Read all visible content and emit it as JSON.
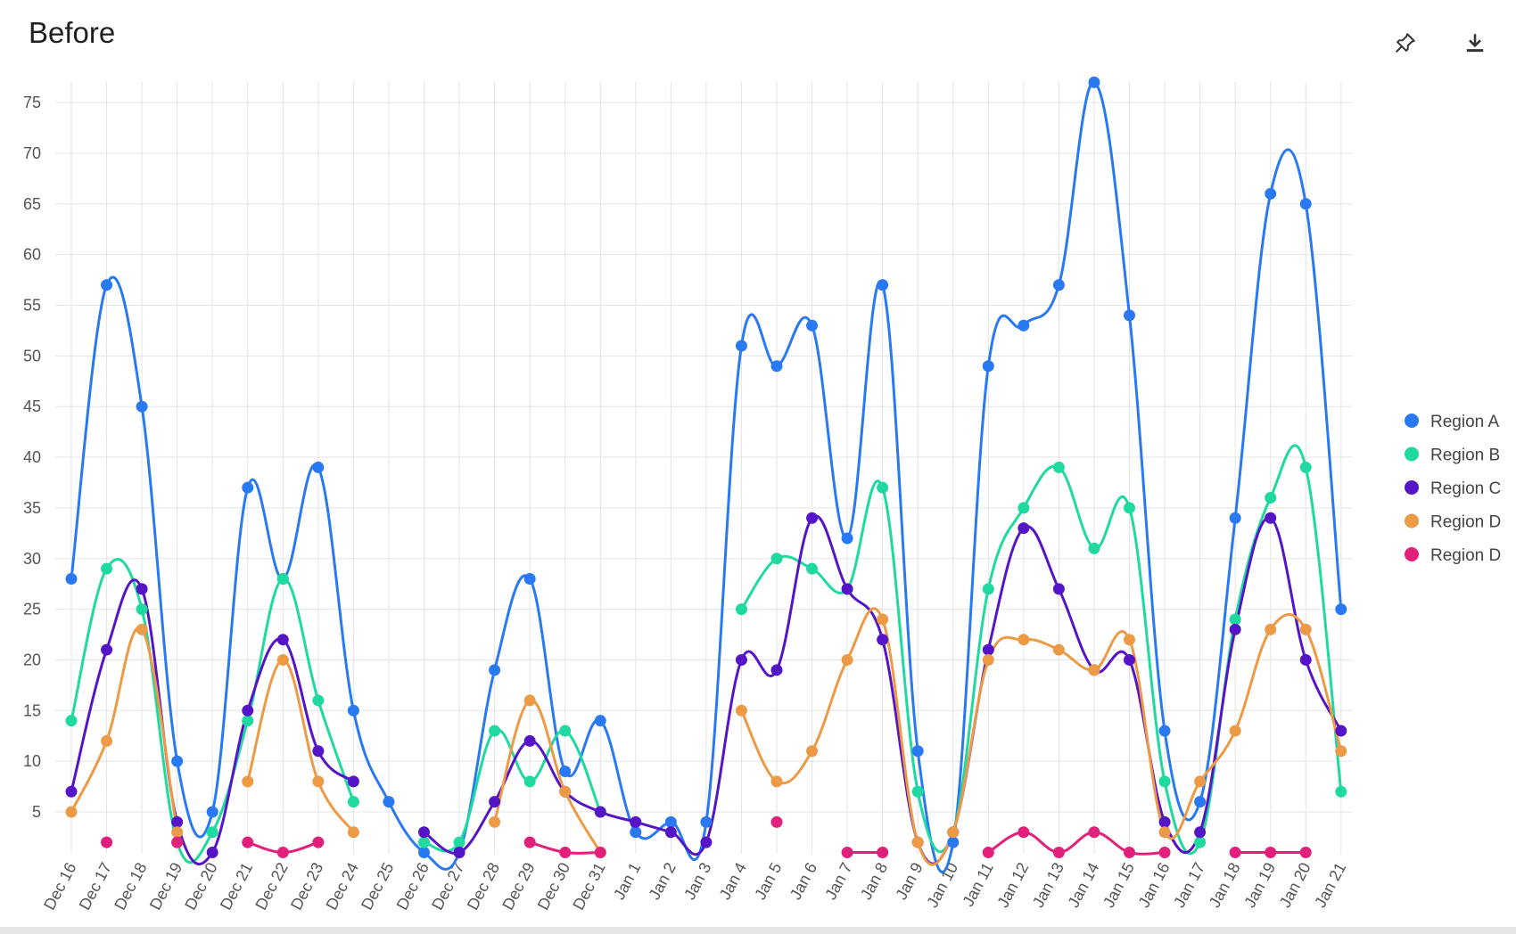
{
  "header": {
    "title": "Before",
    "pin_icon": "pin-icon",
    "download_icon": "download-icon"
  },
  "chart_data": {
    "type": "line",
    "title": "Before",
    "categories": [
      "Dec 16",
      "Dec 17",
      "Dec 18",
      "Dec 19",
      "Dec 20",
      "Dec 21",
      "Dec 22",
      "Dec 23",
      "Dec 24",
      "Dec 25",
      "Dec 26",
      "Dec 27",
      "Dec 28",
      "Dec 29",
      "Dec 30",
      "Dec 31",
      "Jan 1",
      "Jan 2",
      "Jan 3",
      "Jan 4",
      "Jan 5",
      "Jan 6",
      "Jan 7",
      "Jan 8",
      "Jan 9",
      "Jan 10",
      "Jan 11",
      "Jan 12",
      "Jan 13",
      "Jan 14",
      "Jan 15",
      "Jan 16",
      "Jan 17",
      "Jan 18",
      "Jan 19",
      "Jan 20",
      "Jan 21"
    ],
    "y_ticks": [
      5,
      10,
      15,
      20,
      25,
      30,
      35,
      40,
      45,
      50,
      55,
      60,
      65,
      70,
      75
    ],
    "ylim": [
      0,
      78
    ],
    "grid": true,
    "legend_position": "right",
    "series": [
      {
        "name": "Region A",
        "color": "#2979f2",
        "values": [
          28,
          57,
          45,
          10,
          5,
          37,
          28,
          39,
          15,
          6,
          1,
          1,
          19,
          28,
          9,
          14,
          3,
          4,
          4,
          51,
          49,
          53,
          32,
          57,
          11,
          2,
          49,
          53,
          57,
          77,
          54,
          13,
          6,
          34,
          66,
          65,
          25
        ]
      },
      {
        "name": "Region B",
        "color": "#1fd9a0",
        "values": [
          14,
          29,
          25,
          2,
          3,
          14,
          28,
          16,
          6,
          null,
          2,
          2,
          13,
          8,
          13,
          5,
          null,
          null,
          null,
          25,
          30,
          29,
          27,
          37,
          7,
          3,
          27,
          35,
          39,
          31,
          35,
          8,
          2,
          24,
          36,
          39,
          7
        ]
      },
      {
        "name": "Region C",
        "color": "#5515c7",
        "values": [
          7,
          21,
          27,
          4,
          1,
          15,
          22,
          11,
          8,
          null,
          3,
          1,
          6,
          12,
          7,
          5,
          4,
          3,
          2,
          20,
          19,
          34,
          27,
          22,
          2,
          3,
          21,
          33,
          27,
          19,
          20,
          4,
          3,
          23,
          34,
          20,
          13
        ]
      },
      {
        "name": "Region D",
        "color": "#ed9a46",
        "values": [
          5,
          12,
          23,
          3,
          null,
          8,
          20,
          8,
          3,
          null,
          null,
          null,
          4,
          16,
          7,
          1,
          null,
          null,
          null,
          15,
          8,
          11,
          20,
          24,
          2,
          3,
          20,
          22,
          21,
          19,
          22,
          3,
          8,
          13,
          23,
          23,
          11
        ]
      },
      {
        "name": "Region D",
        "color": "#e0207a",
        "values": [
          null,
          2,
          null,
          2,
          null,
          2,
          1,
          2,
          null,
          null,
          null,
          null,
          null,
          2,
          1,
          1,
          null,
          null,
          null,
          null,
          4,
          null,
          1,
          1,
          null,
          null,
          1,
          3,
          1,
          3,
          1,
          1,
          null,
          1,
          1,
          1,
          null
        ]
      }
    ]
  }
}
